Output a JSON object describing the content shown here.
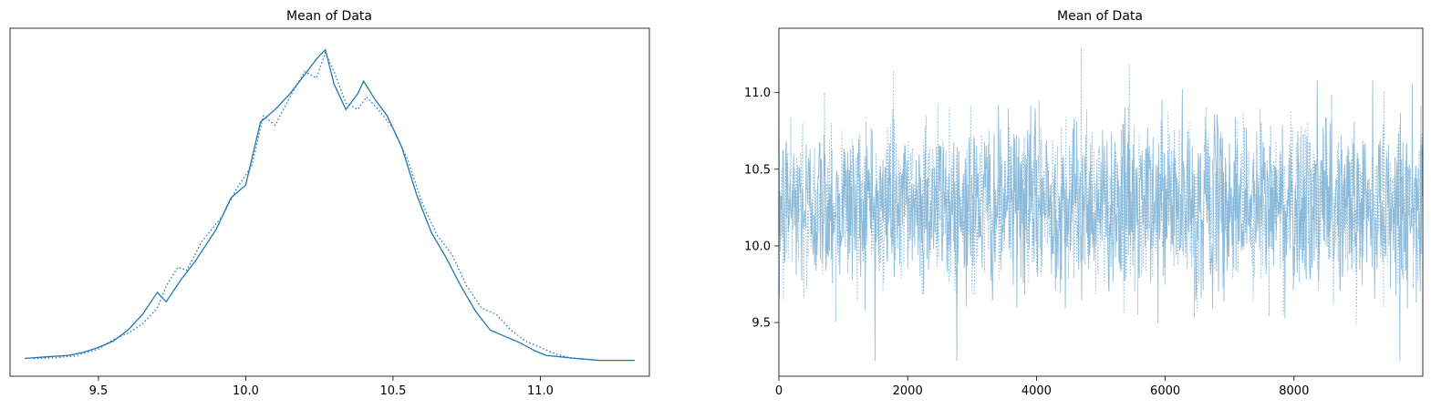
{
  "accent_color": "#1f77b4",
  "trace_color": "#7fb3d6",
  "chart_data": [
    {
      "type": "line",
      "title": "Mean of Data",
      "xlabel": "",
      "ylabel": "",
      "xlim": [
        9.2,
        11.37
      ],
      "ylim": [
        0.0,
        1.0
      ],
      "xticks": [
        9.5,
        10.0,
        10.5,
        11.0
      ],
      "xtick_labels": [
        "9.5",
        "10.0",
        "10.5",
        "11.0"
      ],
      "show_yticks": false,
      "grid": false,
      "series": [
        {
          "style": "solid",
          "x": [
            9.25,
            9.32,
            9.4,
            9.45,
            9.5,
            9.55,
            9.6,
            9.65,
            9.7,
            9.73,
            9.78,
            9.83,
            9.9,
            9.95,
            10.0,
            10.05,
            10.1,
            10.15,
            10.2,
            10.24,
            10.27,
            10.3,
            10.34,
            10.38,
            10.4,
            10.44,
            10.48,
            10.53,
            10.58,
            10.63,
            10.68,
            10.73,
            10.78,
            10.83,
            10.88,
            10.93,
            10.98,
            11.02,
            11.07,
            11.12,
            11.2,
            11.32
          ],
          "values": [
            0.01,
            0.015,
            0.02,
            0.03,
            0.045,
            0.065,
            0.1,
            0.15,
            0.22,
            0.19,
            0.26,
            0.32,
            0.42,
            0.52,
            0.56,
            0.76,
            0.8,
            0.85,
            0.91,
            0.96,
            0.99,
            0.88,
            0.8,
            0.85,
            0.89,
            0.83,
            0.78,
            0.68,
            0.53,
            0.41,
            0.33,
            0.24,
            0.16,
            0.1,
            0.08,
            0.06,
            0.035,
            0.02,
            0.015,
            0.01,
            0.004,
            0.004
          ]
        },
        {
          "style": "dotted",
          "x": [
            9.28,
            9.35,
            9.42,
            9.5,
            9.55,
            9.6,
            9.65,
            9.7,
            9.73,
            9.77,
            9.8,
            9.85,
            9.92,
            9.97,
            10.02,
            10.06,
            10.1,
            10.15,
            10.2,
            10.24,
            10.27,
            10.3,
            10.34,
            10.38,
            10.41,
            10.45,
            10.5,
            10.55,
            10.6,
            10.65,
            10.7,
            10.75,
            10.8,
            10.85,
            10.9,
            10.95,
            11.0,
            11.05,
            11.1,
            11.2
          ],
          "values": [
            0.01,
            0.012,
            0.018,
            0.04,
            0.07,
            0.09,
            0.12,
            0.17,
            0.24,
            0.3,
            0.29,
            0.38,
            0.46,
            0.55,
            0.62,
            0.78,
            0.75,
            0.84,
            0.92,
            0.9,
            0.98,
            0.92,
            0.82,
            0.8,
            0.84,
            0.8,
            0.74,
            0.64,
            0.5,
            0.4,
            0.34,
            0.24,
            0.17,
            0.15,
            0.1,
            0.065,
            0.045,
            0.025,
            0.012,
            0.004
          ]
        }
      ]
    },
    {
      "type": "line",
      "title": "Mean of Data",
      "xlabel": "",
      "ylabel": "",
      "xlim": [
        0,
        10000
      ],
      "ylim": [
        9.15,
        11.42
      ],
      "xticks": [
        0,
        2000,
        4000,
        6000,
        8000
      ],
      "xtick_labels": [
        "0",
        "2000",
        "4000",
        "6000",
        "8000"
      ],
      "yticks": [
        9.5,
        10.0,
        10.5,
        11.0
      ],
      "ytick_labels": [
        "9.5",
        "10.0",
        "10.5",
        "11.0"
      ],
      "grid": false,
      "n_draws": 10000,
      "center": 10.27,
      "spread": 0.27,
      "y_min": 9.25,
      "y_max": 11.33,
      "series": [
        {
          "style": "solid"
        },
        {
          "style": "dotted"
        }
      ]
    }
  ]
}
